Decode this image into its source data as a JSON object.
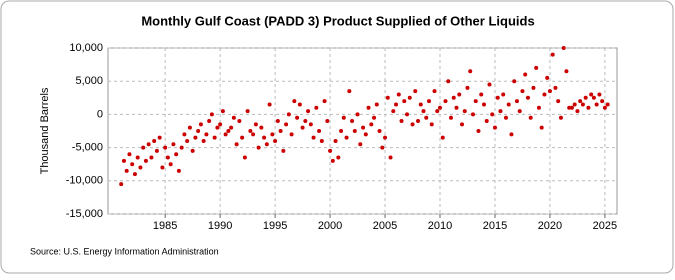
{
  "chart_data": {
    "type": "scatter",
    "title": "Monthly Gulf Coast (PADD 3) Product Supplied of Other Liquids",
    "y_label": "Thousand Barrels",
    "source": "Source: U.S. Energy Information Administration",
    "series": [
      {
        "color": "#cc0000",
        "x": [
          1981.0,
          1981.25,
          1981.5,
          1981.75,
          1982.0,
          1982.25,
          1982.5,
          1982.75,
          1983.0,
          1983.25,
          1983.5,
          1983.75,
          1984.0,
          1984.25,
          1984.5,
          1984.75,
          1985.0,
          1985.25,
          1985.5,
          1985.75,
          1986.0,
          1986.25,
          1986.5,
          1986.75,
          1987.0,
          1987.25,
          1987.5,
          1987.75,
          1988.0,
          1988.25,
          1988.5,
          1988.75,
          1989.0,
          1989.25,
          1989.5,
          1989.75,
          1990.0,
          1990.25,
          1990.5,
          1990.75,
          1991.0,
          1991.25,
          1991.5,
          1991.75,
          1992.0,
          1992.25,
          1992.5,
          1992.75,
          1993.0,
          1993.25,
          1993.5,
          1993.75,
          1994.0,
          1994.25,
          1994.5,
          1994.75,
          1995.0,
          1995.25,
          1995.5,
          1995.75,
          1996.0,
          1996.25,
          1996.5,
          1996.75,
          1997.0,
          1997.25,
          1997.5,
          1997.75,
          1998.0,
          1998.25,
          1998.5,
          1998.75,
          1999.0,
          1999.25,
          1999.5,
          1999.75,
          2000.0,
          2000.25,
          2000.5,
          2000.75,
          2001.0,
          2001.25,
          2001.5,
          2001.75,
          2002.0,
          2002.25,
          2002.5,
          2002.75,
          2003.0,
          2003.25,
          2003.5,
          2003.75,
          2004.0,
          2004.25,
          2004.5,
          2004.75,
          2005.0,
          2005.25,
          2005.5,
          2005.75,
          2006.0,
          2006.25,
          2006.5,
          2006.75,
          2007.0,
          2007.25,
          2007.5,
          2007.75,
          2008.0,
          2008.25,
          2008.5,
          2008.75,
          2009.0,
          2009.25,
          2009.5,
          2009.75,
          2010.0,
          2010.25,
          2010.5,
          2010.75,
          2011.0,
          2011.25,
          2011.5,
          2011.75,
          2012.0,
          2012.25,
          2012.5,
          2012.75,
          2013.0,
          2013.25,
          2013.5,
          2013.75,
          2014.0,
          2014.25,
          2014.5,
          2014.75,
          2015.0,
          2015.25,
          2015.5,
          2015.75,
          2016.0,
          2016.25,
          2016.5,
          2016.75,
          2017.0,
          2017.25,
          2017.5,
          2017.75,
          2018.0,
          2018.25,
          2018.5,
          2018.75,
          2019.0,
          2019.25,
          2019.5,
          2019.75,
          2020.0,
          2020.25,
          2020.5,
          2020.75,
          2021.0,
          2021.25,
          2021.5,
          2021.75,
          2022.0,
          2022.25,
          2022.5,
          2022.75,
          2023.0,
          2023.25,
          2023.5,
          2023.75,
          2024.0,
          2024.25,
          2024.5,
          2024.75,
          2025.0,
          2025.25
        ],
        "values": [
          -10500,
          -7000,
          -8500,
          -6000,
          -7500,
          -9000,
          -6500,
          -8000,
          -5000,
          -7000,
          -4500,
          -6500,
          -4000,
          -5500,
          -3500,
          -8000,
          -5000,
          -6500,
          -7500,
          -4500,
          -6000,
          -8500,
          -5000,
          -3000,
          -4000,
          -2000,
          -5500,
          -3500,
          -2500,
          -1500,
          -4000,
          -3000,
          -1000,
          0,
          -3500,
          -2000,
          -1500,
          500,
          -3000,
          -2500,
          -2000,
          -500,
          -4500,
          -1000,
          -3500,
          -6500,
          500,
          -2500,
          -3000,
          -1500,
          -5000,
          -2000,
          -3500,
          -4500,
          1500,
          -3000,
          -4000,
          -1000,
          -2500,
          -5500,
          -1500,
          0,
          -3000,
          2000,
          -500,
          1500,
          -2000,
          -1000,
          500,
          -1500,
          -3500,
          1000,
          -2500,
          -4000,
          2000,
          -1000,
          -5500,
          -7000,
          -4000,
          -6500,
          -2500,
          -500,
          -3500,
          3500,
          -1000,
          -2500,
          0,
          -4500,
          -2000,
          -3000,
          1000,
          -1500,
          -500,
          1500,
          -2500,
          -5000,
          -3500,
          2500,
          -6500,
          500,
          1500,
          3000,
          -1000,
          2000,
          0,
          2500,
          -1500,
          3500,
          -1000,
          1500,
          500,
          -500,
          2000,
          -1500,
          3500,
          500,
          1000,
          -3500,
          2000,
          5000,
          -500,
          2500,
          1000,
          3000,
          -1500,
          500,
          4000,
          6500,
          0,
          2000,
          -2500,
          3000,
          1500,
          -1000,
          4500,
          0,
          -2000,
          2500,
          500,
          3000,
          -500,
          1500,
          -3000,
          5000,
          2000,
          500,
          3500,
          6000,
          2500,
          -500,
          4000,
          7000,
          1000,
          -2000,
          3000,
          5500,
          3500,
          9000,
          4000,
          2000,
          -500,
          10000,
          6500,
          1000,
          1000,
          1500,
          500,
          2000,
          1500,
          2500,
          1000,
          3000,
          2500,
          1500,
          3000,
          2000,
          1000,
          1500
        ]
      }
    ],
    "xlim": [
      1979.8,
      2026.1
    ],
    "xticks": [
      1985,
      1990,
      1995,
      2000,
      2005,
      2010,
      2015,
      2020,
      2025
    ],
    "ylim": [
      -15000,
      10000
    ],
    "yticks": [
      {
        "value": -15000,
        "label": "-15,000"
      },
      {
        "value": -10000,
        "label": "-10,000"
      },
      {
        "value": -5000,
        "label": "-5,000"
      },
      0,
      {
        "value": 5000,
        "label": "5,000"
      },
      {
        "value": 10000,
        "label": "10,000"
      }
    ],
    "grid": true
  }
}
